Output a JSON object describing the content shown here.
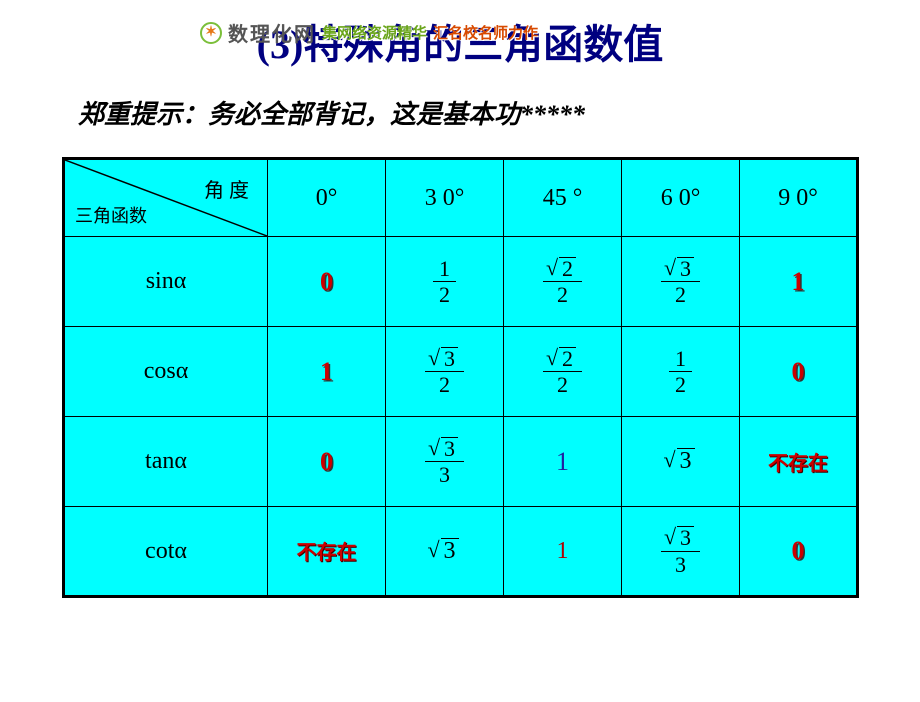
{
  "watermark": {
    "brand": "数理化网",
    "brand_sub": "shulihua.net",
    "tag1": "集网络资源精华",
    "tag2": "汇名校名师力作",
    "logo_glyph": "✶"
  },
  "title": "(3)特殊角的三角函数值",
  "subtitle": "郑重提示：务必全部背记，这是基本功*****",
  "colors": {
    "title": "#000080",
    "cell_bg": "#00ffff",
    "border": "#000000",
    "emph_red": "#cc0000",
    "value_blue": "#2020a0",
    "page_bg": "#ffffff"
  },
  "table": {
    "corner_top": "角 度",
    "corner_left": "三角函数",
    "angles": [
      "0°",
      "3 0°",
      "45 °",
      "6 0°",
      "9 0°"
    ],
    "rows": [
      {
        "func": "sinα",
        "cells": [
          {
            "kind": "emph",
            "text": "0"
          },
          {
            "kind": "frac",
            "num": "1",
            "den": "2"
          },
          {
            "kind": "frac",
            "num_sqrt": "2",
            "den": "2"
          },
          {
            "kind": "frac",
            "num_sqrt": "3",
            "den": "2"
          },
          {
            "kind": "emph",
            "text": "1"
          }
        ]
      },
      {
        "func": "cosα",
        "cells": [
          {
            "kind": "emph",
            "text": "1"
          },
          {
            "kind": "frac",
            "num_sqrt": "3",
            "den": "2"
          },
          {
            "kind": "frac",
            "num_sqrt": "2",
            "den": "2"
          },
          {
            "kind": "frac",
            "num": "1",
            "den": "2"
          },
          {
            "kind": "emph",
            "text": "0"
          }
        ]
      },
      {
        "func": "tanα",
        "cells": [
          {
            "kind": "emph",
            "text": "0"
          },
          {
            "kind": "frac",
            "num_sqrt": "3",
            "den": "3"
          },
          {
            "kind": "blue",
            "text": "1"
          },
          {
            "kind": "sqrt",
            "rad": "3"
          },
          {
            "kind": "emphtext",
            "text": "不存在"
          }
        ]
      },
      {
        "func": "cotα",
        "cells": [
          {
            "kind": "emphtext",
            "text": "不存在"
          },
          {
            "kind": "sqrt",
            "rad": "3"
          },
          {
            "kind": "plainred",
            "text": "1"
          },
          {
            "kind": "frac",
            "num_sqrt": "3",
            "den": "3"
          },
          {
            "kind": "emph",
            "text": "0"
          }
        ]
      }
    ]
  }
}
